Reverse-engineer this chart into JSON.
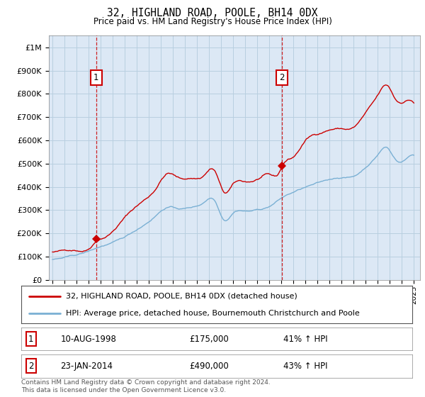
{
  "title": "32, HIGHLAND ROAD, POOLE, BH14 0DX",
  "subtitle": "Price paid vs. HM Land Registry's House Price Index (HPI)",
  "legend_line1": "32, HIGHLAND ROAD, POOLE, BH14 0DX (detached house)",
  "legend_line2": "HPI: Average price, detached house, Bournemouth Christchurch and Poole",
  "sale1_label": "10-AUG-1998",
  "sale1_price": 175000,
  "sale1_hpi_pct": "41% ↑ HPI",
  "sale1_year": 1998.62,
  "sale2_label": "23-JAN-2014",
  "sale2_price": 490000,
  "sale2_hpi_pct": "43% ↑ HPI",
  "sale2_year": 2014.06,
  "line_color_red": "#cc0000",
  "line_color_blue": "#7ab0d4",
  "plot_bg": "#dce8f5",
  "footer": "Contains HM Land Registry data © Crown copyright and database right 2024.\nThis data is licensed under the Open Government Licence v3.0.",
  "ylim": [
    0,
    1050000
  ],
  "yticks": [
    0,
    100000,
    200000,
    300000,
    400000,
    500000,
    600000,
    700000,
    800000,
    900000,
    1000000
  ],
  "ytick_labels": [
    "£0",
    "£100K",
    "£200K",
    "£300K",
    "£400K",
    "£500K",
    "£600K",
    "£700K",
    "£800K",
    "£900K",
    "£1M"
  ],
  "xlim_min": 1994.7,
  "xlim_max": 2025.5
}
